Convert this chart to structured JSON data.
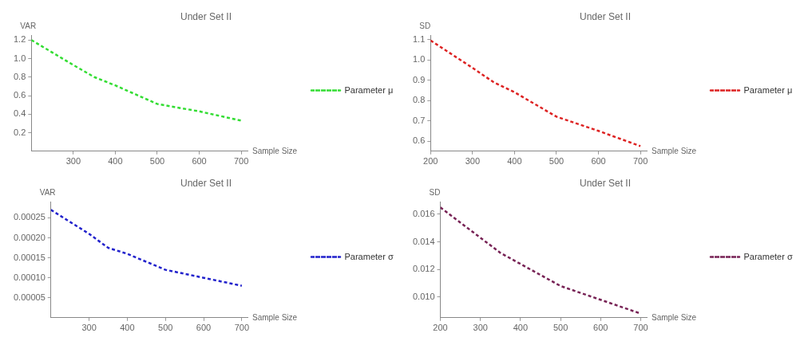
{
  "chart_data": [
    {
      "type": "line",
      "title": "Under Set II",
      "xlabel": "Sample Size",
      "ylabel": "VAR",
      "legend": "right",
      "line_style": "dashed",
      "marker": "none",
      "grid": false,
      "x": [
        200,
        300,
        350,
        400,
        500,
        600,
        700
      ],
      "xlim": [
        200,
        715
      ],
      "xticks": [
        300,
        400,
        500,
        600,
        700
      ],
      "ylim": [
        0,
        1.25
      ],
      "yticks": [
        0.2,
        0.4,
        0.6,
        0.8,
        {
          "value": 1,
          "label": "1.0"
        },
        1.2
      ],
      "series": [
        {
          "name": "Parameter μ",
          "color": "#33dd33",
          "values": [
            1.2,
            0.93,
            0.8,
            0.71,
            0.51,
            0.43,
            0.33
          ]
        }
      ]
    },
    {
      "type": "line",
      "title": "Under Set II",
      "xlabel": "Sample Size",
      "ylabel": "SD",
      "legend": "right",
      "line_style": "dashed",
      "marker": "none",
      "grid": false,
      "x": [
        200,
        300,
        350,
        400,
        500,
        600,
        700
      ],
      "xlim": [
        200,
        715
      ],
      "xticks": [
        200,
        300,
        400,
        500,
        600,
        700
      ],
      "ylim": [
        0.55,
        1.12
      ],
      "yticks": [
        0.6,
        0.7,
        0.8,
        0.9,
        {
          "value": 1,
          "label": "1.0"
        },
        1.1
      ],
      "series": [
        {
          "name": "Parameter μ",
          "color": "#dd2222",
          "values": [
            1.095,
            0.96,
            0.89,
            0.84,
            0.72,
            0.65,
            0.575
          ]
        }
      ]
    },
    {
      "type": "line",
      "title": "Under Set II",
      "xlabel": "Sample Size",
      "ylabel": "VAR",
      "legend": "right",
      "line_style": "dashed",
      "marker": "none",
      "grid": false,
      "x": [
        200,
        300,
        350,
        400,
        500,
        600,
        700
      ],
      "xlim": [
        200,
        715
      ],
      "xticks": [
        300,
        400,
        500,
        600,
        700
      ],
      "ylim": [
        0,
        0.00029
      ],
      "yticks": [
        {
          "value": 5e-05,
          "label": "0.00005"
        },
        {
          "value": 0.0001,
          "label": "0.00010"
        },
        {
          "value": 0.00015,
          "label": "0.00015"
        },
        {
          "value": 0.0002,
          "label": "0.00020"
        },
        {
          "value": 0.00025,
          "label": "0.00025"
        }
      ],
      "series": [
        {
          "name": "Parameter σ",
          "color": "#2222cc",
          "values": [
            0.00027,
            0.00021,
            0.000175,
            0.00016,
            0.00012,
            0.0001,
            8e-05
          ]
        }
      ]
    },
    {
      "type": "line",
      "title": "Under Set II",
      "xlabel": "Sample Size",
      "ylabel": "SD",
      "legend": "right",
      "line_style": "dashed",
      "marker": "none",
      "grid": false,
      "x": [
        200,
        300,
        350,
        400,
        500,
        600,
        700
      ],
      "xlim": [
        200,
        715
      ],
      "xticks": [
        200,
        300,
        400,
        500,
        600,
        700
      ],
      "ylim": [
        0.0085,
        0.0169
      ],
      "yticks": [
        {
          "value": 0.01,
          "label": "0.010"
        },
        {
          "value": 0.012,
          "label": "0.012"
        },
        {
          "value": 0.014,
          "label": "0.014"
        },
        {
          "value": 0.016,
          "label": "0.016"
        }
      ],
      "series": [
        {
          "name": "Parameter σ",
          "color": "#772255",
          "values": [
            0.0165,
            0.0143,
            0.0132,
            0.0124,
            0.0108,
            0.0098,
            0.0088
          ]
        }
      ]
    }
  ]
}
